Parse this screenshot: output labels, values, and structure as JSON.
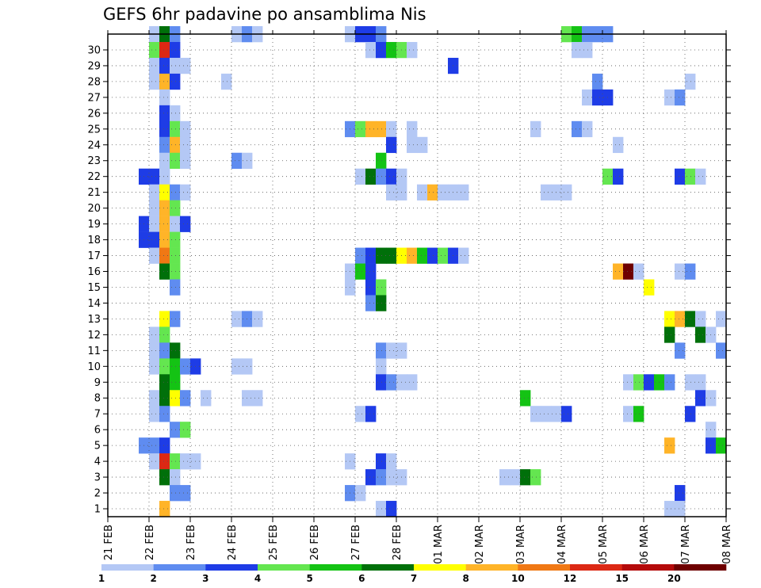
{
  "chart_data": {
    "type": "heatmap",
    "title": "GEFS 6hr padavine po ansamblima Nis",
    "xlabel": "",
    "ylabel": "",
    "x_tick_labels": [
      "21 FEB",
      "22 FEB",
      "23 FEB",
      "24 FEB",
      "25 FEB",
      "26 FEB",
      "27 FEB",
      "28 FEB",
      "01 MAR",
      "02 MAR",
      "03 MAR",
      "04 MAR",
      "05 MAR",
      "06 MAR",
      "07 MAR",
      "08 MAR"
    ],
    "y_tick_labels": [
      "1",
      "2",
      "3",
      "4",
      "5",
      "6",
      "7",
      "8",
      "9",
      "10",
      "11",
      "12",
      "13",
      "14",
      "15",
      "16",
      "17",
      "18",
      "19",
      "20",
      "21",
      "22",
      "23",
      "24",
      "25",
      "26",
      "27",
      "28",
      "29",
      "30"
    ],
    "x_unit": "6h steps from 21 FEB 00Z",
    "y_members": [
      0,
      30
    ],
    "grid": "dotted",
    "legend": {
      "position": "bottom",
      "thresholds": [
        "1",
        "2",
        "3",
        "4",
        "5",
        "6",
        "7",
        "8",
        "10",
        "12",
        "15",
        "20"
      ],
      "colors": [
        "#b4c8f5",
        "#5f8cf0",
        "#1e3ce6",
        "#64e650",
        "#14c314",
        "#00700a",
        "#ffff00",
        "#ffb428",
        "#f07814",
        "#dc2814",
        "#b40a0a",
        "#6e0000"
      ]
    },
    "cells": [
      [
        30,
        4,
        0
      ],
      [
        30,
        5,
        5
      ],
      [
        30,
        6,
        1
      ],
      [
        30,
        12,
        0
      ],
      [
        30,
        13,
        1
      ],
      [
        30,
        14,
        0
      ],
      [
        30,
        23,
        0
      ],
      [
        30,
        24,
        2
      ],
      [
        30,
        25,
        2
      ],
      [
        30,
        26,
        1
      ],
      [
        30,
        44,
        3
      ],
      [
        30,
        45,
        4
      ],
      [
        30,
        46,
        1
      ],
      [
        30,
        47,
        1
      ],
      [
        30,
        48,
        1
      ],
      [
        29,
        4,
        3
      ],
      [
        29,
        5,
        9
      ],
      [
        29,
        6,
        2
      ],
      [
        29,
        25,
        0
      ],
      [
        29,
        26,
        2
      ],
      [
        29,
        27,
        4
      ],
      [
        29,
        28,
        3
      ],
      [
        29,
        29,
        0
      ],
      [
        29,
        45,
        0
      ],
      [
        29,
        46,
        0
      ],
      [
        28,
        4,
        0
      ],
      [
        28,
        5,
        2
      ],
      [
        28,
        6,
        0
      ],
      [
        28,
        7,
        0
      ],
      [
        28,
        33,
        2
      ],
      [
        27,
        4,
        0
      ],
      [
        27,
        5,
        7
      ],
      [
        27,
        6,
        2
      ],
      [
        27,
        11,
        0
      ],
      [
        27,
        47,
        1
      ],
      [
        27,
        56,
        0
      ],
      [
        26,
        5,
        0
      ],
      [
        26,
        46,
        0
      ],
      [
        26,
        47,
        2
      ],
      [
        26,
        48,
        2
      ],
      [
        26,
        54,
        0
      ],
      [
        26,
        55,
        1
      ],
      [
        25,
        5,
        2
      ],
      [
        25,
        6,
        0
      ],
      [
        24,
        5,
        2
      ],
      [
        24,
        6,
        3
      ],
      [
        24,
        7,
        0
      ],
      [
        24,
        23,
        1
      ],
      [
        24,
        24,
        3
      ],
      [
        24,
        25,
        7
      ],
      [
        24,
        26,
        7
      ],
      [
        24,
        27,
        0
      ],
      [
        24,
        29,
        0
      ],
      [
        24,
        41,
        0
      ],
      [
        24,
        45,
        1
      ],
      [
        24,
        46,
        0
      ],
      [
        23,
        5,
        1
      ],
      [
        23,
        6,
        7
      ],
      [
        23,
        7,
        0
      ],
      [
        23,
        27,
        2
      ],
      [
        23,
        29,
        0
      ],
      [
        23,
        30,
        0
      ],
      [
        23,
        49,
        0
      ],
      [
        22,
        5,
        0
      ],
      [
        22,
        6,
        3
      ],
      [
        22,
        7,
        0
      ],
      [
        22,
        12,
        1
      ],
      [
        22,
        13,
        0
      ],
      [
        22,
        26,
        4
      ],
      [
        21,
        3,
        2
      ],
      [
        21,
        4,
        2
      ],
      [
        21,
        5,
        0
      ],
      [
        21,
        24,
        0
      ],
      [
        21,
        25,
        5
      ],
      [
        21,
        26,
        1
      ],
      [
        21,
        27,
        2
      ],
      [
        21,
        28,
        0
      ],
      [
        21,
        48,
        3
      ],
      [
        21,
        49,
        2
      ],
      [
        21,
        55,
        2
      ],
      [
        21,
        56,
        3
      ],
      [
        21,
        57,
        0
      ],
      [
        20,
        4,
        0
      ],
      [
        20,
        5,
        6
      ],
      [
        20,
        6,
        1
      ],
      [
        20,
        7,
        0
      ],
      [
        20,
        27,
        0
      ],
      [
        20,
        28,
        0
      ],
      [
        20,
        30,
        0
      ],
      [
        20,
        31,
        7
      ],
      [
        20,
        32,
        0
      ],
      [
        20,
        33,
        0
      ],
      [
        20,
        34,
        0
      ],
      [
        20,
        42,
        0
      ],
      [
        20,
        43,
        0
      ],
      [
        20,
        44,
        0
      ],
      [
        19,
        4,
        0
      ],
      [
        19,
        5,
        7
      ],
      [
        19,
        6,
        3
      ],
      [
        18,
        3,
        2
      ],
      [
        18,
        4,
        0
      ],
      [
        18,
        5,
        7
      ],
      [
        18,
        6,
        0
      ],
      [
        18,
        7,
        2
      ],
      [
        17,
        3,
        2
      ],
      [
        17,
        4,
        2
      ],
      [
        17,
        5,
        7
      ],
      [
        17,
        6,
        3
      ],
      [
        16,
        4,
        0
      ],
      [
        16,
        5,
        8
      ],
      [
        16,
        6,
        3
      ],
      [
        16,
        24,
        1
      ],
      [
        16,
        25,
        2
      ],
      [
        16,
        26,
        5
      ],
      [
        16,
        27,
        5
      ],
      [
        16,
        28,
        6
      ],
      [
        16,
        29,
        7
      ],
      [
        16,
        30,
        4
      ],
      [
        16,
        31,
        2
      ],
      [
        16,
        32,
        3
      ],
      [
        16,
        33,
        2
      ],
      [
        16,
        34,
        0
      ],
      [
        15,
        5,
        5
      ],
      [
        15,
        6,
        3
      ],
      [
        15,
        23,
        0
      ],
      [
        15,
        24,
        4
      ],
      [
        15,
        25,
        2
      ],
      [
        15,
        49,
        7
      ],
      [
        15,
        50,
        11
      ],
      [
        15,
        51,
        0
      ],
      [
        15,
        55,
        0
      ],
      [
        15,
        56,
        1
      ],
      [
        14,
        6,
        1
      ],
      [
        14,
        23,
        0
      ],
      [
        14,
        25,
        2
      ],
      [
        14,
        26,
        3
      ],
      [
        14,
        52,
        6
      ],
      [
        13,
        25,
        1
      ],
      [
        13,
        26,
        5
      ],
      [
        12,
        5,
        6
      ],
      [
        12,
        6,
        1
      ],
      [
        12,
        12,
        0
      ],
      [
        12,
        13,
        1
      ],
      [
        12,
        14,
        0
      ],
      [
        12,
        54,
        6
      ],
      [
        12,
        55,
        7
      ],
      [
        12,
        56,
        5
      ],
      [
        12,
        57,
        0
      ],
      [
        12,
        59,
        0
      ],
      [
        11,
        4,
        0
      ],
      [
        11,
        5,
        3
      ],
      [
        11,
        54,
        5
      ],
      [
        11,
        57,
        5
      ],
      [
        11,
        58,
        0
      ],
      [
        10,
        4,
        0
      ],
      [
        10,
        5,
        1
      ],
      [
        10,
        6,
        5
      ],
      [
        10,
        26,
        1
      ],
      [
        10,
        27,
        0
      ],
      [
        10,
        28,
        0
      ],
      [
        10,
        55,
        1
      ],
      [
        10,
        59,
        1
      ],
      [
        9,
        4,
        0
      ],
      [
        9,
        5,
        3
      ],
      [
        9,
        6,
        4
      ],
      [
        9,
        7,
        1
      ],
      [
        9,
        8,
        2
      ],
      [
        9,
        12,
        0
      ],
      [
        9,
        13,
        0
      ],
      [
        9,
        26,
        0
      ],
      [
        8,
        5,
        5
      ],
      [
        8,
        6,
        4
      ],
      [
        8,
        26,
        2
      ],
      [
        8,
        27,
        1
      ],
      [
        8,
        28,
        0
      ],
      [
        8,
        29,
        0
      ],
      [
        8,
        50,
        0
      ],
      [
        8,
        51,
        3
      ],
      [
        8,
        52,
        2
      ],
      [
        8,
        53,
        4
      ],
      [
        8,
        54,
        1
      ],
      [
        8,
        56,
        0
      ],
      [
        8,
        57,
        0
      ],
      [
        7,
        4,
        0
      ],
      [
        7,
        5,
        5
      ],
      [
        7,
        6,
        6
      ],
      [
        7,
        7,
        1
      ],
      [
        7,
        9,
        0
      ],
      [
        7,
        13,
        0
      ],
      [
        7,
        14,
        0
      ],
      [
        7,
        40,
        4
      ],
      [
        7,
        57,
        2
      ],
      [
        7,
        58,
        0
      ],
      [
        6,
        4,
        0
      ],
      [
        6,
        5,
        1
      ],
      [
        6,
        24,
        0
      ],
      [
        6,
        25,
        2
      ],
      [
        6,
        41,
        0
      ],
      [
        6,
        42,
        0
      ],
      [
        6,
        43,
        0
      ],
      [
        6,
        44,
        2
      ],
      [
        6,
        50,
        0
      ],
      [
        6,
        51,
        4
      ],
      [
        6,
        56,
        2
      ],
      [
        5,
        6,
        1
      ],
      [
        5,
        7,
        3
      ],
      [
        5,
        58,
        0
      ],
      [
        4,
        3,
        1
      ],
      [
        4,
        4,
        1
      ],
      [
        4,
        5,
        2
      ],
      [
        4,
        54,
        7
      ],
      [
        4,
        58,
        2
      ],
      [
        4,
        59,
        4
      ],
      [
        3,
        4,
        0
      ],
      [
        3,
        5,
        9
      ],
      [
        3,
        6,
        3
      ],
      [
        3,
        7,
        0
      ],
      [
        3,
        8,
        0
      ],
      [
        3,
        23,
        0
      ],
      [
        3,
        26,
        2
      ],
      [
        3,
        27,
        0
      ],
      [
        2,
        5,
        5
      ],
      [
        2,
        6,
        0
      ],
      [
        2,
        25,
        2
      ],
      [
        2,
        26,
        1
      ],
      [
        2,
        27,
        0
      ],
      [
        2,
        28,
        0
      ],
      [
        2,
        38,
        0
      ],
      [
        2,
        39,
        0
      ],
      [
        2,
        40,
        5
      ],
      [
        2,
        41,
        3
      ],
      [
        1,
        6,
        1
      ],
      [
        1,
        7,
        1
      ],
      [
        1,
        23,
        1
      ],
      [
        1,
        24,
        0
      ],
      [
        1,
        55,
        2
      ],
      [
        0,
        5,
        7
      ],
      [
        0,
        26,
        0
      ],
      [
        0,
        27,
        2
      ],
      [
        0,
        54,
        0
      ],
      [
        0,
        55,
        0
      ]
    ]
  }
}
